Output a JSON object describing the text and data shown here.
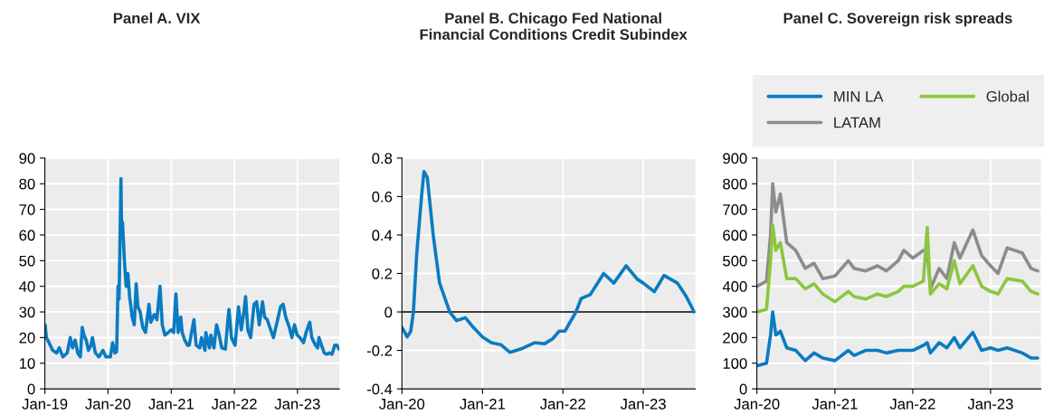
{
  "chart_data": [
    {
      "type": "line",
      "title": "Panel A. VIX",
      "grid": true,
      "legend": false,
      "xlim": [
        "2019-01-01",
        "2023-08-31"
      ],
      "ylim": [
        0,
        90
      ],
      "yticks": [
        0,
        10,
        20,
        30,
        40,
        50,
        60,
        70,
        80,
        90
      ],
      "xticks": [
        {
          "value": "2019-01-01",
          "label": "Jan-19"
        },
        {
          "value": "2020-01-01",
          "label": "Jan-20"
        },
        {
          "value": "2021-01-01",
          "label": "Jan-21"
        },
        {
          "value": "2022-01-01",
          "label": "Jan-22"
        },
        {
          "value": "2023-01-01",
          "label": "Jan-23"
        }
      ],
      "series": [
        {
          "color": "#0a7bc1",
          "x": [
            "2019-01-02",
            "2019-01-10",
            "2019-01-25",
            "2019-02-15",
            "2019-03-10",
            "2019-03-25",
            "2019-04-15",
            "2019-05-10",
            "2019-05-28",
            "2019-06-10",
            "2019-06-25",
            "2019-07-10",
            "2019-07-25",
            "2019-08-05",
            "2019-08-15",
            "2019-08-28",
            "2019-09-10",
            "2019-09-25",
            "2019-10-03",
            "2019-10-20",
            "2019-11-10",
            "2019-12-03",
            "2019-12-20",
            "2020-01-15",
            "2020-01-28",
            "2020-02-10",
            "2020-02-20",
            "2020-02-28",
            "2020-03-05",
            "2020-03-16",
            "2020-03-20",
            "2020-03-25",
            "2020-04-05",
            "2020-04-15",
            "2020-04-25",
            "2020-05-05",
            "2020-05-20",
            "2020-06-01",
            "2020-06-12",
            "2020-06-22",
            "2020-07-05",
            "2020-07-20",
            "2020-08-05",
            "2020-08-25",
            "2020-09-05",
            "2020-09-25",
            "2020-10-10",
            "2020-10-28",
            "2020-11-10",
            "2020-11-25",
            "2020-12-15",
            "2020-12-31",
            "2021-01-15",
            "2021-01-28",
            "2021-02-10",
            "2021-02-25",
            "2021-03-05",
            "2021-03-20",
            "2021-04-05",
            "2021-04-15",
            "2021-05-12",
            "2021-05-25",
            "2021-06-15",
            "2021-06-25",
            "2021-07-15",
            "2021-07-20",
            "2021-08-10",
            "2021-08-18",
            "2021-09-05",
            "2021-09-20",
            "2021-10-05",
            "2021-10-20",
            "2021-11-10",
            "2021-11-26",
            "2021-12-01",
            "2021-12-15",
            "2022-01-05",
            "2022-01-25",
            "2022-02-10",
            "2022-02-25",
            "2022-03-07",
            "2022-03-20",
            "2022-04-05",
            "2022-04-25",
            "2022-05-10",
            "2022-05-25",
            "2022-06-13",
            "2022-06-25",
            "2022-07-10",
            "2022-07-25",
            "2022-08-15",
            "2022-09-05",
            "2022-09-25",
            "2022-10-10",
            "2022-10-25",
            "2022-11-15",
            "2022-11-30",
            "2022-12-15",
            "2022-12-30",
            "2023-01-15",
            "2023-02-05",
            "2023-02-20",
            "2023-03-13",
            "2023-03-25",
            "2023-04-15",
            "2023-04-28",
            "2023-05-05",
            "2023-05-20",
            "2023-06-05",
            "2023-06-20",
            "2023-07-05",
            "2023-07-20",
            "2023-08-05",
            "2023-08-18",
            "2023-08-28"
          ],
          "values": [
            25,
            20,
            18,
            15,
            14,
            16,
            12.5,
            14,
            20,
            16,
            19,
            14,
            12.5,
            24,
            21,
            19,
            15,
            17,
            20,
            14,
            12.5,
            15,
            12.5,
            12.5,
            18,
            14,
            14.5,
            40,
            35,
            82,
            60,
            65,
            50,
            40,
            45,
            36,
            28,
            25,
            41,
            32,
            30,
            24,
            22,
            33,
            26,
            29,
            27,
            40,
            25,
            21,
            22,
            23,
            22,
            37,
            22,
            28,
            22,
            19,
            17,
            17,
            27,
            17,
            16,
            20,
            15,
            22,
            16,
            21,
            16,
            25,
            21,
            16,
            15.5,
            28,
            31,
            20,
            17,
            32,
            23,
            30,
            36,
            23,
            20,
            33,
            34,
            25,
            34,
            28,
            27,
            24,
            20,
            26,
            32,
            33,
            28,
            24,
            20,
            25,
            21,
            20,
            18,
            22,
            26,
            20,
            17,
            16,
            20,
            17,
            14,
            13.5,
            14,
            13.5,
            17,
            17,
            15.5
          ]
        }
      ]
    },
    {
      "type": "line",
      "title": "Panel B. Chicago Fed National\nFinancial Conditions Credit Subindex",
      "grid": true,
      "legend": false,
      "xlim": [
        "2020-01-01",
        "2023-08-25"
      ],
      "ylim": [
        -0.4,
        0.8
      ],
      "yticks": [
        -0.4,
        -0.2,
        0,
        0.2,
        0.4,
        0.6,
        0.8
      ],
      "xticks": [
        {
          "value": "2020-01-01",
          "label": "Jan-20"
        },
        {
          "value": "2021-01-01",
          "label": "Jan-21"
        },
        {
          "value": "2022-01-01",
          "label": "Jan-22"
        },
        {
          "value": "2023-01-01",
          "label": "Jan-23"
        }
      ],
      "ref_lines": [
        {
          "axis": "y",
          "value": 0,
          "color": "#000000"
        }
      ],
      "series": [
        {
          "color": "#0a7bc1",
          "x": [
            "2020-01-01",
            "2020-01-25",
            "2020-02-10",
            "2020-02-22",
            "2020-03-08",
            "2020-03-30",
            "2020-04-10",
            "2020-04-25",
            "2020-05-22",
            "2020-06-20",
            "2020-08-05",
            "2020-09-05",
            "2020-10-15",
            "2020-11-20",
            "2021-01-01",
            "2021-02-10",
            "2021-03-25",
            "2021-05-05",
            "2021-06-30",
            "2021-08-25",
            "2021-10-10",
            "2021-11-15",
            "2021-12-15",
            "2022-01-10",
            "2022-03-01",
            "2022-03-25",
            "2022-05-05",
            "2022-07-05",
            "2022-08-20",
            "2022-10-15",
            "2022-12-05",
            "2023-01-01",
            "2023-02-20",
            "2023-04-05",
            "2023-06-05",
            "2023-07-15",
            "2023-08-20"
          ],
          "values": [
            -0.08,
            -0.13,
            -0.1,
            0,
            0.3,
            0.6,
            0.73,
            0.7,
            0.4,
            0.15,
            0,
            -0.045,
            -0.03,
            -0.08,
            -0.13,
            -0.16,
            -0.17,
            -0.21,
            -0.19,
            -0.16,
            -0.165,
            -0.14,
            -0.1,
            -0.1,
            0,
            0.07,
            0.09,
            0.2,
            0.15,
            0.24,
            0.17,
            0.15,
            0.105,
            0.19,
            0.15,
            0.08,
            0
          ]
        }
      ]
    },
    {
      "type": "line",
      "title": "Panel C. Sovereign risk spreads",
      "grid": true,
      "legend": "top",
      "xlim": [
        "2020-01-01",
        "2023-08-25"
      ],
      "ylim": [
        0,
        900
      ],
      "yticks": [
        0,
        100,
        200,
        300,
        400,
        500,
        600,
        700,
        800,
        900
      ],
      "xticks": [
        {
          "value": "2020-01-01",
          "label": "Jan-20"
        },
        {
          "value": "2021-01-01",
          "label": "Jan-21"
        },
        {
          "value": "2022-01-01",
          "label": "Jan-22"
        },
        {
          "value": "2023-01-01",
          "label": "Jan-23"
        }
      ],
      "x": [
        "2020-01-01",
        "2020-02-15",
        "2020-03-05",
        "2020-03-15",
        "2020-03-30",
        "2020-04-20",
        "2020-05-20",
        "2020-07-01",
        "2020-08-15",
        "2020-09-25",
        "2020-11-05",
        "2021-01-01",
        "2021-03-05",
        "2021-04-01",
        "2021-05-25",
        "2021-07-20",
        "2021-08-30",
        "2021-10-25",
        "2021-11-20",
        "2022-01-01",
        "2022-02-20",
        "2022-03-10",
        "2022-03-25",
        "2022-05-05",
        "2022-06-10",
        "2022-07-15",
        "2022-08-10",
        "2022-10-10",
        "2022-11-20",
        "2023-01-01",
        "2023-02-05",
        "2023-03-20",
        "2023-05-30",
        "2023-07-10",
        "2023-08-10"
      ],
      "series": [
        {
          "name": "MIN LA",
          "color": "#0a7bc1",
          "values": [
            90,
            100,
            210,
            300,
            210,
            225,
            160,
            150,
            110,
            140,
            120,
            110,
            150,
            130,
            150,
            150,
            140,
            150,
            150,
            150,
            170,
            180,
            140,
            180,
            160,
            200,
            160,
            220,
            150,
            160,
            150,
            160,
            140,
            120,
            120
          ]
        },
        {
          "name": "LATAM",
          "color": "#8c8c8c",
          "values": [
            400,
            420,
            600,
            800,
            690,
            760,
            570,
            540,
            470,
            490,
            430,
            440,
            500,
            470,
            460,
            480,
            460,
            500,
            540,
            510,
            540,
            540,
            390,
            470,
            430,
            570,
            510,
            620,
            520,
            480,
            450,
            550,
            530,
            470,
            460
          ]
        },
        {
          "name": "Global",
          "color": "#8cc63f",
          "values": [
            300,
            310,
            500,
            640,
            540,
            570,
            430,
            430,
            390,
            410,
            370,
            340,
            380,
            360,
            350,
            370,
            360,
            380,
            400,
            400,
            420,
            630,
            370,
            410,
            390,
            500,
            410,
            480,
            400,
            380,
            370,
            430,
            420,
            380,
            370
          ]
        }
      ]
    }
  ]
}
